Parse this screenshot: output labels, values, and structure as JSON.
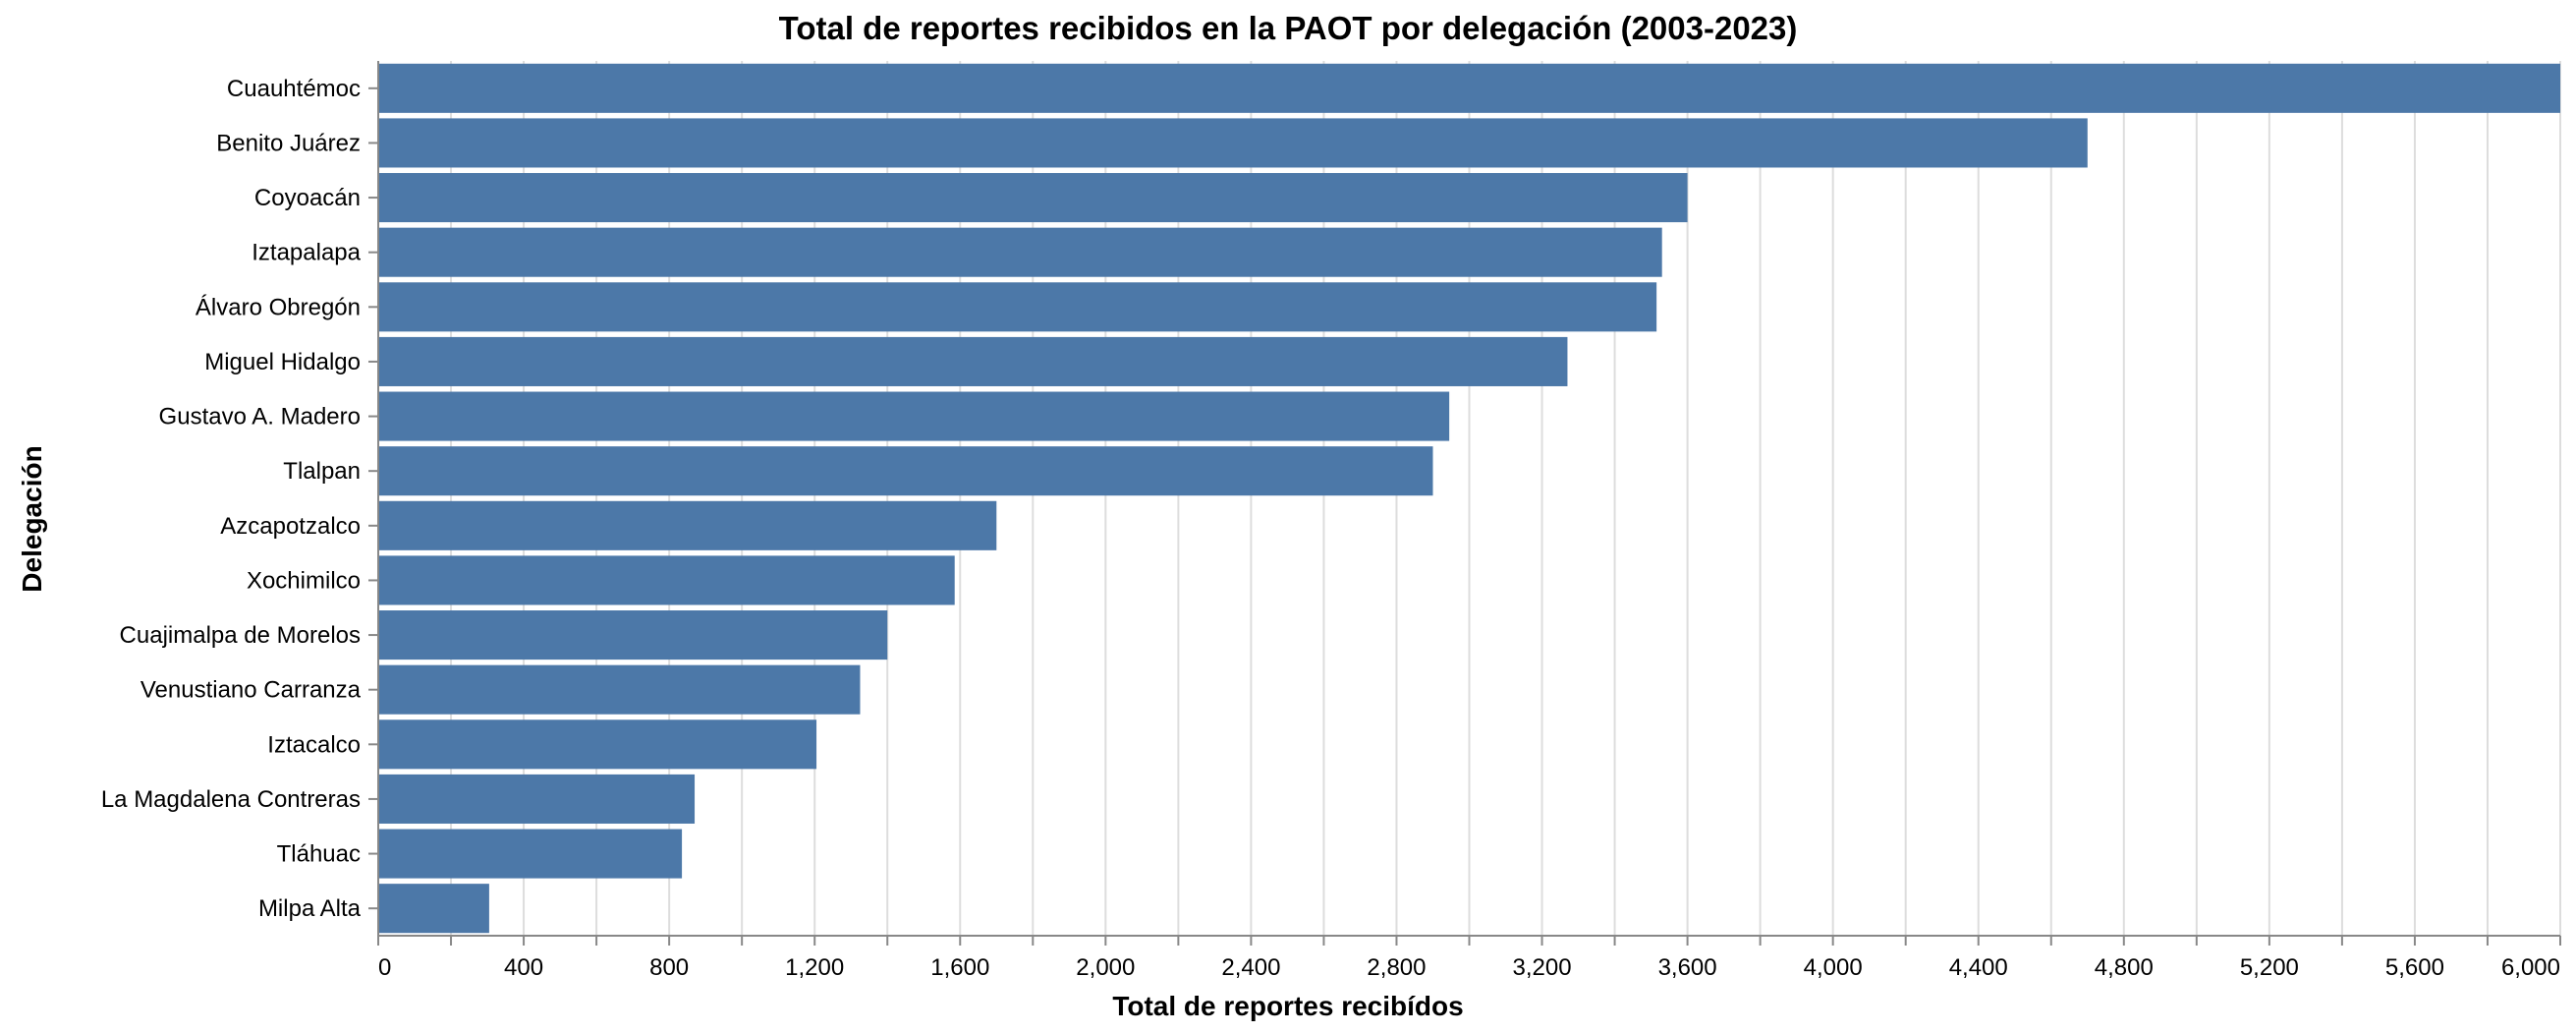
{
  "chart_data": {
    "type": "bar",
    "orientation": "horizontal",
    "title": "Total de reportes recibidos en la PAOT por delegación (2003-2023)",
    "xlabel": "Total de reportes recibídos",
    "ylabel": "Delegación",
    "xlim": [
      0,
      6000
    ],
    "x_ticks": [
      "0",
      "400",
      "800",
      "1,200",
      "1,600",
      "2,000",
      "2,400",
      "2,800",
      "3,200",
      "3,600",
      "4,000",
      "4,400",
      "4,800",
      "5,200",
      "5,600",
      "6,000"
    ],
    "x_tick_values": [
      0,
      400,
      800,
      1200,
      1600,
      2000,
      2400,
      2800,
      3200,
      3600,
      4000,
      4400,
      4800,
      5200,
      5600,
      6000
    ],
    "grid": true,
    "bar_color": "#4c78a8",
    "categories": [
      "Cuauhtémoc",
      "Benito Juárez",
      "Coyoacán",
      "Iztapalapa",
      "Álvaro Obregón",
      "Miguel Hidalgo",
      "Gustavo A. Madero",
      "Tlalpan",
      "Azcapotzalco",
      "Xochimilco",
      "Cuajimalpa de Morelos",
      "Venustiano Carranza",
      "Iztacalco",
      "La Magdalena Contreras",
      "Tláhuac",
      "Milpa Alta"
    ],
    "values": [
      6010,
      4700,
      3600,
      3530,
      3515,
      3270,
      2945,
      2900,
      1700,
      1585,
      1400,
      1325,
      1205,
      870,
      835,
      305
    ]
  }
}
